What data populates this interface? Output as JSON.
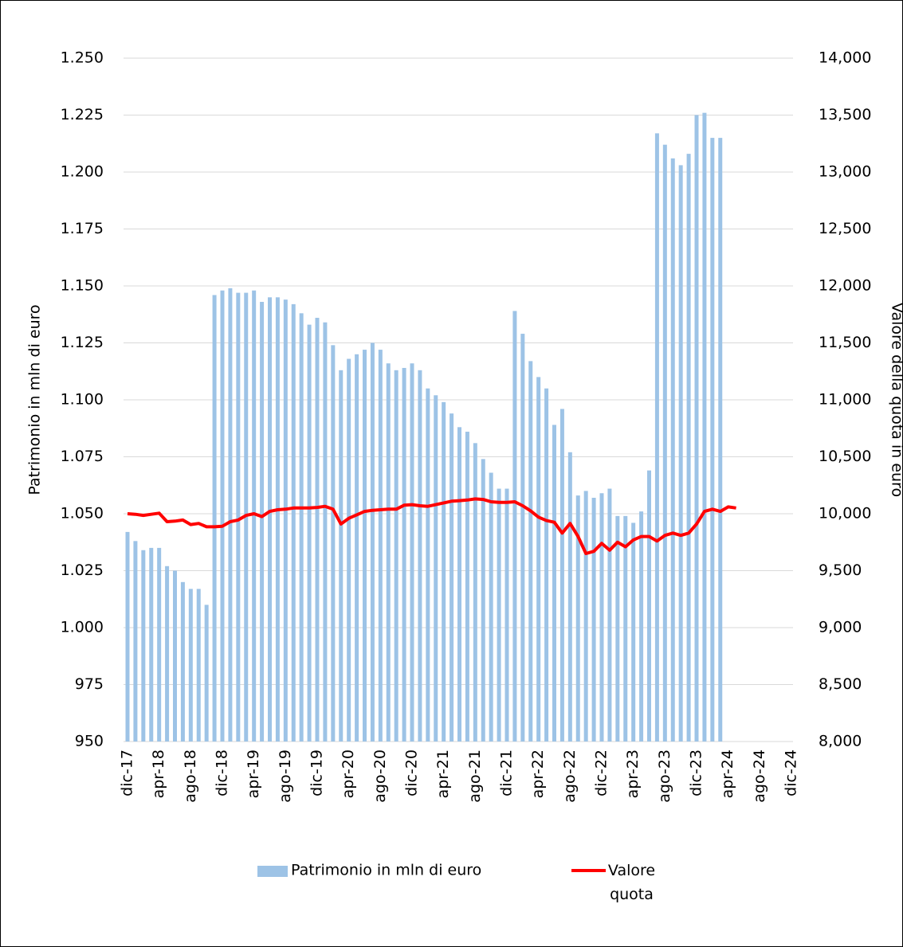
{
  "chart_data": {
    "type": "bar_line",
    "y_label": "Patrimonio in mln di euro",
    "y2_label": "Valore della quota in euro",
    "categories": [
      "dic-17",
      null,
      null,
      null,
      "apr-18",
      null,
      null,
      null,
      "ago-18",
      null,
      null,
      null,
      "dic-18",
      null,
      null,
      null,
      "apr-19",
      null,
      null,
      null,
      "ago-19",
      null,
      null,
      null,
      "dic-19",
      null,
      null,
      null,
      "apr-20",
      null,
      null,
      null,
      "ago-20",
      null,
      null,
      null,
      "dic-20",
      null,
      null,
      null,
      "apr-21",
      null,
      null,
      null,
      "ago-21",
      null,
      null,
      null,
      "dic-21",
      null,
      null,
      null,
      "apr-22",
      null,
      null,
      null,
      "ago-22",
      null,
      null,
      null,
      "dic-22",
      null,
      null,
      null,
      "apr-23",
      null,
      null,
      null,
      "ago-23",
      null,
      null,
      null,
      "dic-23",
      null,
      null,
      null,
      "apr-24",
      null,
      null,
      null,
      "ago-24",
      null,
      null,
      null,
      "dic-24"
    ],
    "series": [
      {
        "name": "Patrimonio in mln di euro",
        "type": "bar",
        "color": "#9dc3e6",
        "values": [
          1042,
          1038,
          1034,
          1035,
          1035,
          1027,
          1025,
          1020,
          1017,
          1017,
          1010,
          1146,
          1148,
          1149,
          1147,
          1147,
          1148,
          1143,
          1145,
          1145,
          1144,
          1142,
          1138,
          1133,
          1136,
          1134,
          1124,
          1113,
          1118,
          1120,
          1122,
          1125,
          1122,
          1116,
          1113,
          1114,
          1116,
          1113,
          1105,
          1102,
          1099,
          1094,
          1088,
          1086,
          1081,
          1074,
          1068,
          1061,
          1061,
          1139,
          1129,
          1117,
          1110,
          1105,
          1089,
          1096,
          1077,
          1058,
          1060,
          1057,
          1059,
          1061,
          1049,
          1049,
          1046,
          1051,
          1069,
          1217,
          1212,
          1206,
          1203,
          1208,
          1225,
          1226,
          1215,
          1215,
          null,
          null,
          null,
          null,
          null,
          null,
          null,
          null,
          null
        ]
      },
      {
        "name": "Valore quota",
        "type": "line",
        "axis": "y2",
        "color": "#ff0000",
        "values": [
          10000,
          9995,
          9985,
          9995,
          10005,
          9930,
          9935,
          9945,
          9905,
          9915,
          9885,
          9885,
          9890,
          9930,
          9945,
          9985,
          10000,
          9975,
          10020,
          10035,
          10040,
          10050,
          10050,
          10050,
          10055,
          10065,
          10040,
          9910,
          9960,
          9990,
          10020,
          10030,
          10035,
          10040,
          10040,
          10075,
          10080,
          10070,
          10065,
          10080,
          10095,
          10110,
          10115,
          10120,
          10130,
          10125,
          10105,
          10100,
          10100,
          10105,
          10070,
          10025,
          9970,
          9940,
          9925,
          9830,
          9915,
          9800,
          9650,
          9670,
          9740,
          9680,
          9750,
          9710,
          9770,
          9800,
          9800,
          9760,
          9810,
          9830,
          9810,
          9830,
          9910,
          10020,
          10040,
          10020,
          10060,
          10050,
          null,
          null,
          null,
          null,
          null,
          null,
          null
        ]
      }
    ],
    "ylim": [
      950,
      1250
    ],
    "yticks": [
      950,
      975,
      {
        "value": 1000,
        "label": "1.000"
      },
      {
        "value": 1025,
        "label": "1.025"
      },
      {
        "value": 1050,
        "label": "1.050"
      },
      {
        "value": 1075,
        "label": "1.075"
      },
      {
        "value": 1100,
        "label": "1.100"
      },
      {
        "value": 1125,
        "label": "1.125"
      },
      {
        "value": 1150,
        "label": "1.150"
      },
      {
        "value": 1175,
        "label": "1.175"
      },
      {
        "value": 1200,
        "label": "1.200"
      },
      {
        "value": 1225,
        "label": "1.225"
      },
      {
        "value": 1250,
        "label": "1.250"
      }
    ],
    "y2lim": [
      8000,
      14000
    ],
    "y2ticks": [
      {
        "value": 8000,
        "label": "8,000"
      },
      {
        "value": 8500,
        "label": "8,500"
      },
      {
        "value": 9000,
        "label": "9,000"
      },
      {
        "value": 9500,
        "label": "9,500"
      },
      {
        "value": 10000,
        "label": "10,000"
      },
      {
        "value": 10500,
        "label": "10,500"
      },
      {
        "value": 11000,
        "label": "11,000"
      },
      {
        "value": 11500,
        "label": "11,500"
      },
      {
        "value": 12000,
        "label": "12,000"
      },
      {
        "value": 12500,
        "label": "12,500"
      },
      {
        "value": 13000,
        "label": "13,000"
      },
      {
        "value": 13500,
        "label": "13,500"
      },
      {
        "value": 14000,
        "label": "14,000"
      }
    ],
    "grid": true,
    "legend": "bottom"
  }
}
